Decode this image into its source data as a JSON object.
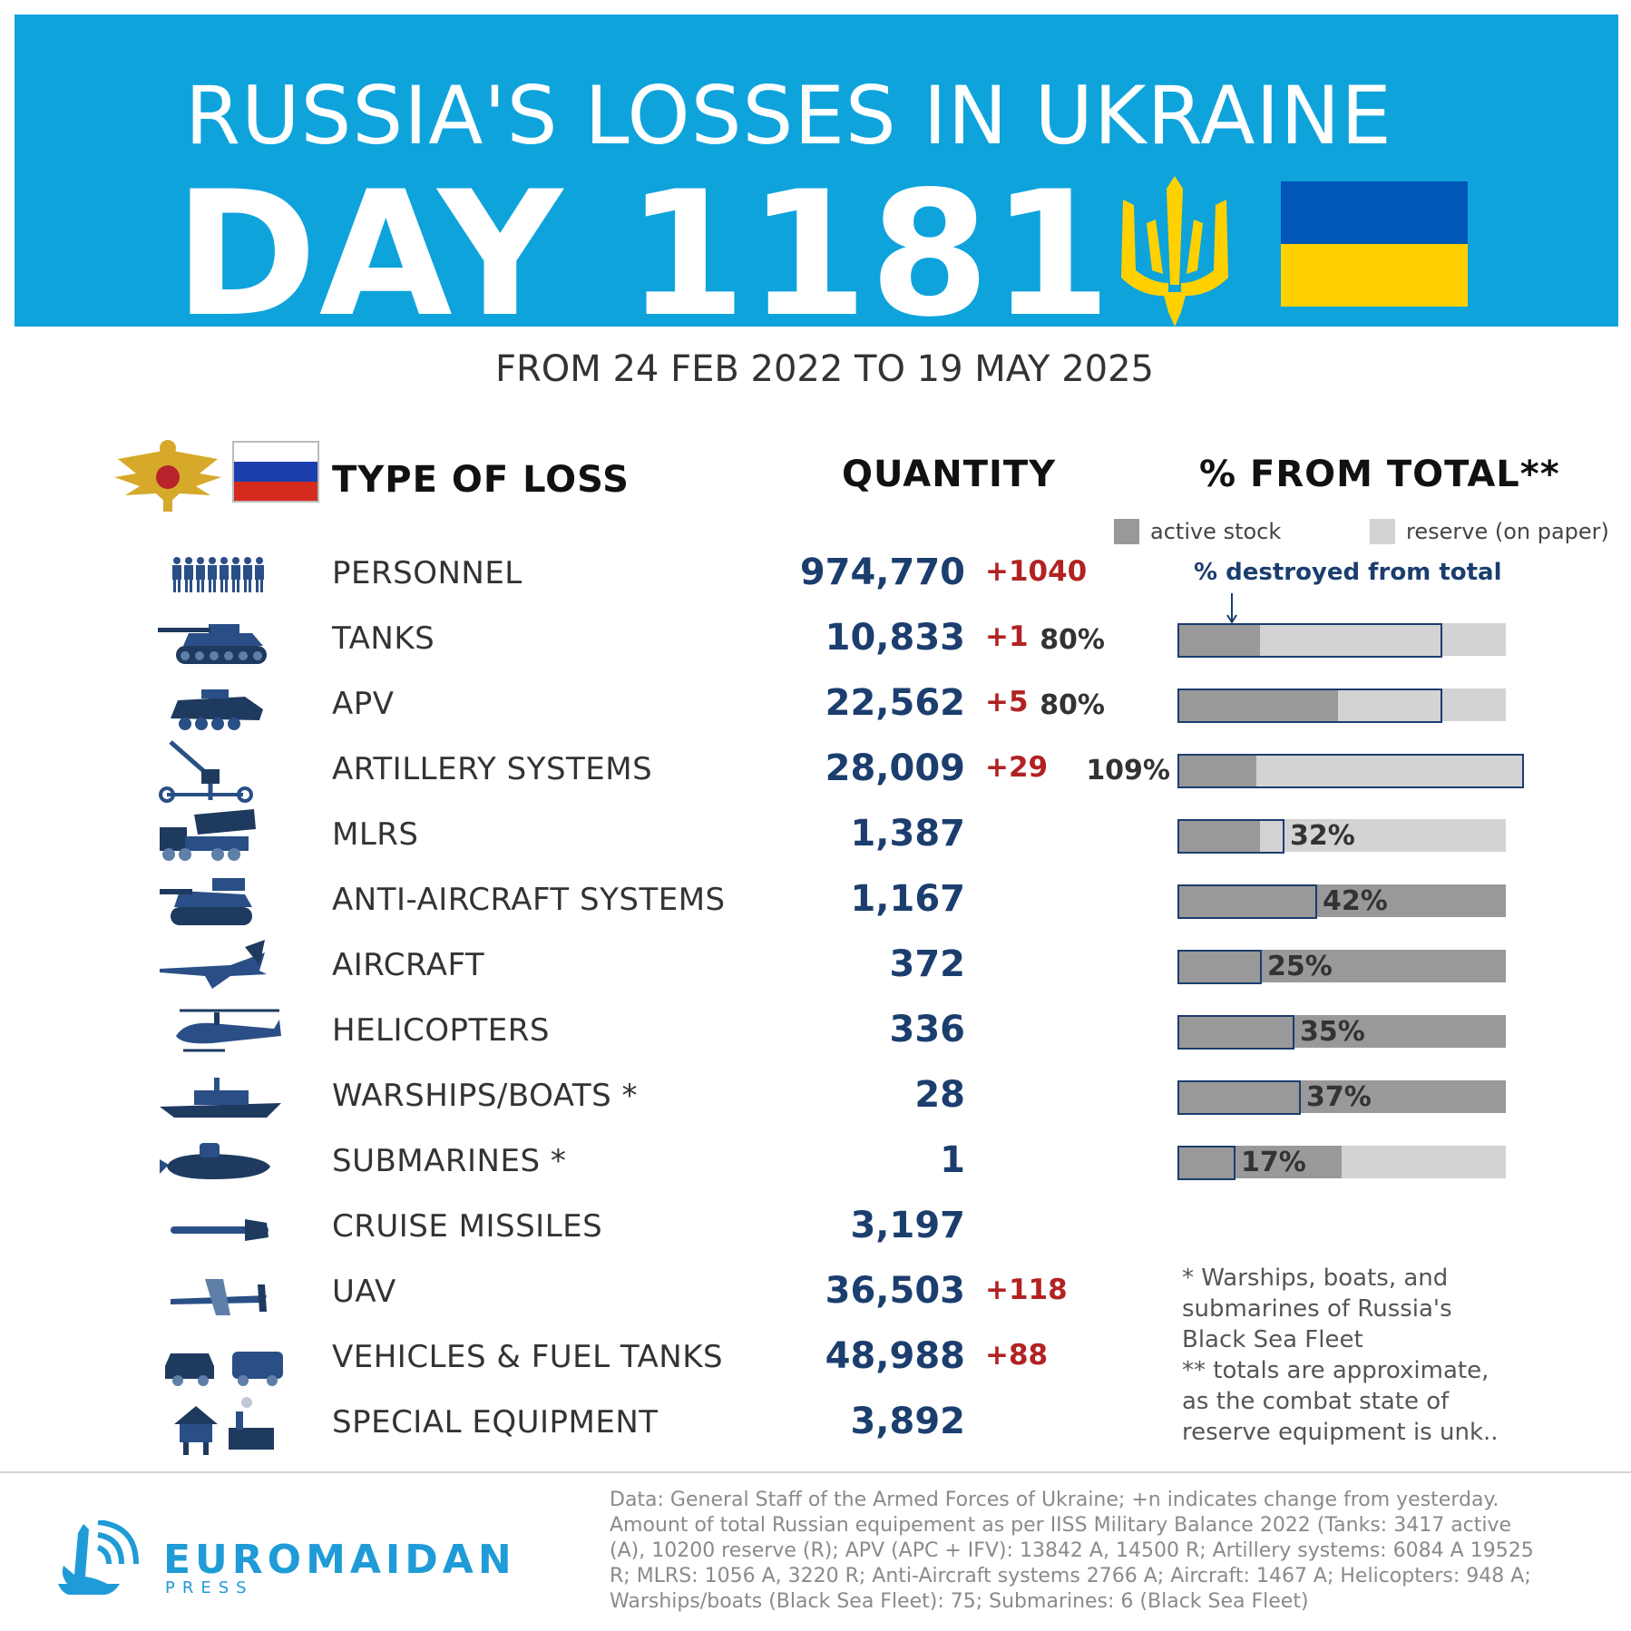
{
  "banner": {
    "title": "RUSSIA'S LOSSES IN UKRAINE",
    "day": "DAY 1181",
    "colors": {
      "background": "#0fa3dc",
      "flag_blue": "#0057b8",
      "flag_yellow": "#ffd100"
    }
  },
  "subtitle": "FROM 24 FEB 2022 TO 19 MAY 2025",
  "headers": {
    "type": "TYPE OF LOSS",
    "quantity": "QUANTITY",
    "percent": "% FROM TOTAL**"
  },
  "legend": {
    "active": {
      "label": "active stock",
      "color": "#999999"
    },
    "reserve": {
      "label": "reserve (on paper)",
      "color": "#d3d3d3"
    },
    "destroyed_label": "% destroyed from total"
  },
  "chart_data": {
    "type": "bar",
    "categories": [
      "TANKS",
      "APV",
      "ARTILLERY SYSTEMS",
      "MLRS",
      "ANTI-AIRCRAFT SYSTEMS",
      "AIRCRAFT",
      "HELICOPTERS",
      "WARSHIPS/BOATS *",
      "SUBMARINES *"
    ],
    "percent_labels": [
      "80%",
      "80%",
      "109%",
      "32%",
      "42%",
      "25%",
      "35%",
      "37%",
      "17%"
    ],
    "destroyed_percent": [
      80,
      80,
      109,
      32,
      42,
      25,
      35,
      37,
      17
    ],
    "active_share_percent": [
      25,
      49,
      24,
      25,
      100,
      100,
      100,
      100,
      50
    ],
    "reserve_share_percent": [
      75,
      51,
      76,
      75,
      0,
      0,
      0,
      0,
      50
    ],
    "series": [
      {
        "name": "active stock",
        "color": "#999999"
      },
      {
        "name": "reserve (on paper)",
        "color": "#d3d3d3"
      }
    ],
    "ylim": [
      0,
      100
    ]
  },
  "rows": [
    {
      "icon": "soldiers-icon",
      "label": "PERSONNEL",
      "quantity": "974,770",
      "change": "+1040"
    },
    {
      "icon": "tank-icon",
      "label": "TANKS",
      "quantity": "10,833",
      "change": "+1"
    },
    {
      "icon": "apv-icon",
      "label": "APV",
      "quantity": "22,562",
      "change": "+5"
    },
    {
      "icon": "artillery-icon",
      "label": "ARTILLERY SYSTEMS",
      "quantity": "28,009",
      "change": "+29"
    },
    {
      "icon": "mlrs-icon",
      "label": "MLRS",
      "quantity": "1,387",
      "change": ""
    },
    {
      "icon": "anti-aircraft-icon",
      "label": "ANTI-AIRCRAFT SYSTEMS",
      "quantity": "1,167",
      "change": ""
    },
    {
      "icon": "aircraft-icon",
      "label": "AIRCRAFT",
      "quantity": "372",
      "change": ""
    },
    {
      "icon": "helicopter-icon",
      "label": "HELICOPTERS",
      "quantity": "336",
      "change": ""
    },
    {
      "icon": "warship-icon",
      "label": "WARSHIPS/BOATS *",
      "quantity": "28",
      "change": ""
    },
    {
      "icon": "submarine-icon",
      "label": "SUBMARINES *",
      "quantity": "1",
      "change": ""
    },
    {
      "icon": "cruise-missile-icon",
      "label": "CRUISE MISSILES",
      "quantity": "3,197",
      "change": ""
    },
    {
      "icon": "uav-icon",
      "label": "UAV",
      "quantity": "36,503",
      "change": "+118"
    },
    {
      "icon": "vehicles-icon",
      "label": "VEHICLES & FUEL TANKS",
      "quantity": "48,988",
      "change": "+88"
    },
    {
      "icon": "special-equipment-icon",
      "label": "SPECIAL EQUIPMENT",
      "quantity": "3,892",
      "change": ""
    }
  ],
  "footnote": "* Warships, boats, and\nsubmarines of Russia's\nBlack Sea Fleet\n** totals are approximate,\nas the combat state of\nreserve equipment is unk..",
  "footer": {
    "brand": "EUROMAIDAN",
    "brand_sub": "PRESS",
    "source": "Data: General Staff of the Armed Forces of Ukraine; +n indicates change from yesterday. Amount of total Russian equipement as per IISS Military Balance 2022 (Tanks: 3417 active (A), 10200 reserve (R); APV (APC + IFV): 13842 A, 14500 R; Artillery systems: 6084 A 19525 R; MLRS: 1056 A, 3220 R; Anti-Aircraft systems 2766 A; Aircraft: 1467 A; Helicopters: 948 A; Warships/boats (Black Sea Fleet): 75; Submarines: 6 (Black Sea Fleet)"
  }
}
